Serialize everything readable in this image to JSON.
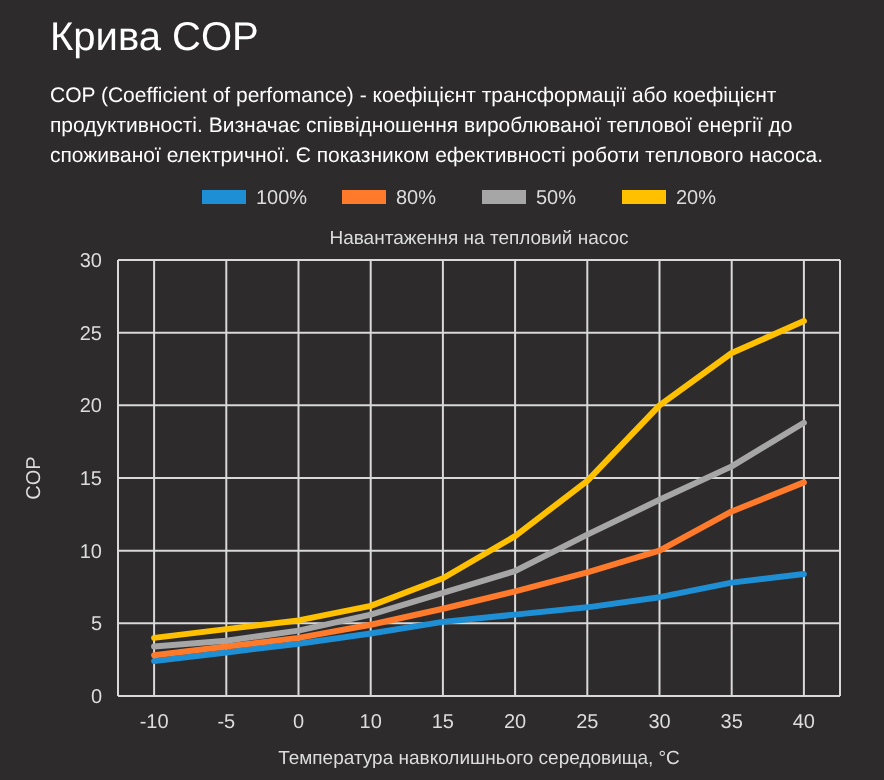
{
  "chart_data": {
    "type": "line",
    "title": "Крива COP",
    "subtitle": "COP (Coefficient of perfomance) - коефіцієнт трансформації або коефіцієнт продуктивності. Визначає співвідношення вироблюваної теплової енергії до споживаної електричної. Є показником ефективності роботи теплового насоса.",
    "annotations": [
      "Навантаження на тепловий насос"
    ],
    "xlabel": "Температура навколишнього середовища, °C",
    "ylabel": "COP",
    "categories": [
      "-10",
      "-5",
      "0",
      "10",
      "15",
      "20",
      "25",
      "30",
      "35",
      "40"
    ],
    "series": [
      {
        "name": "100%",
        "color": "#1e8fd5",
        "values": [
          2.4,
          3.0,
          3.6,
          4.3,
          5.1,
          5.6,
          6.1,
          6.8,
          7.8,
          8.4
        ]
      },
      {
        "name": "80%",
        "color": "#ff7a2a",
        "values": [
          2.8,
          3.4,
          4.0,
          4.9,
          6.0,
          7.2,
          8.5,
          10.0,
          12.7,
          14.7
        ]
      },
      {
        "name": "50%",
        "color": "#a6a6a6",
        "values": [
          3.4,
          3.8,
          4.5,
          5.6,
          7.1,
          8.6,
          11.1,
          13.5,
          15.8,
          18.8
        ]
      },
      {
        "name": "20%",
        "color": "#ffc000",
        "values": [
          4.0,
          4.6,
          5.2,
          6.2,
          8.1,
          11.0,
          14.8,
          20.0,
          23.6,
          25.8
        ]
      }
    ],
    "ylim": [
      0,
      30
    ],
    "yticks": [
      0,
      5,
      10,
      15,
      20,
      25,
      30
    ],
    "grid": true,
    "legend": "top",
    "marker": "none",
    "line_style": "solid"
  }
}
